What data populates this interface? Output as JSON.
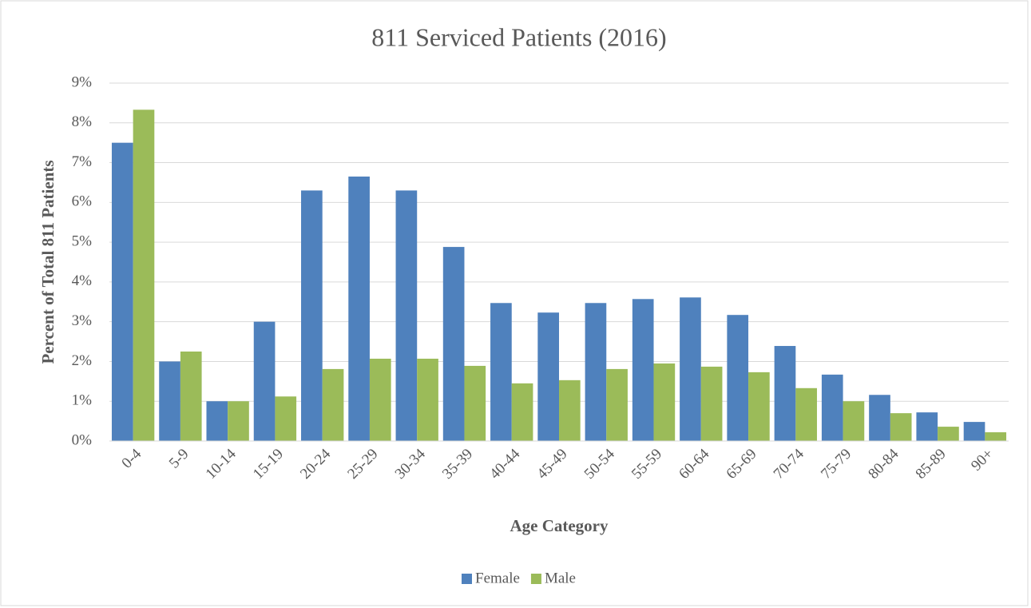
{
  "chart_data": {
    "type": "bar",
    "title": "811 Serviced Patients (2016)",
    "x_label": "Age Category",
    "y_label": "Percent of Total 811 Patients",
    "categories": [
      "0-4",
      "5-9",
      "10-14",
      "15-19",
      "20-24",
      "25-29",
      "30-34",
      "35-39",
      "40-44",
      "45-49",
      "50-54",
      "55-59",
      "60-64",
      "65-69",
      "70-74",
      "75-79",
      "80-84",
      "85-89",
      "90+"
    ],
    "series": [
      {
        "name": "Female",
        "color": "#4f81bd",
        "values": [
          7.5,
          2.0,
          1.0,
          3.0,
          6.3,
          6.65,
          6.3,
          4.88,
          3.47,
          3.23,
          3.47,
          3.57,
          3.61,
          3.17,
          2.39,
          1.67,
          1.16,
          0.72,
          0.48
        ]
      },
      {
        "name": "Male",
        "color": "#9bbb59",
        "values": [
          8.33,
          2.25,
          1.0,
          1.12,
          1.81,
          2.07,
          2.07,
          1.89,
          1.45,
          1.53,
          1.81,
          1.95,
          1.87,
          1.73,
          1.33,
          1.0,
          0.7,
          0.36,
          0.22
        ]
      }
    ],
    "ylim": [
      0,
      9
    ],
    "yticks": [
      {
        "value": 0,
        "label": "0%"
      },
      {
        "value": 1,
        "label": "1%"
      },
      {
        "value": 2,
        "label": "2%"
      },
      {
        "value": 3,
        "label": "3%"
      },
      {
        "value": 4,
        "label": "4%"
      },
      {
        "value": 5,
        "label": "5%"
      },
      {
        "value": 6,
        "label": "6%"
      },
      {
        "value": 7,
        "label": "7%"
      },
      {
        "value": 8,
        "label": "8%"
      },
      {
        "value": 9,
        "label": "9%"
      }
    ],
    "grid": true,
    "legend": "bottom"
  }
}
